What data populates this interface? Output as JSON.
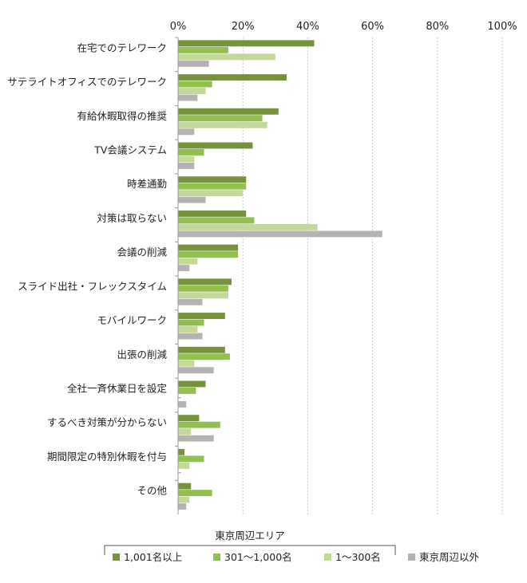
{
  "chart_data": {
    "type": "bar",
    "orientation": "horizontal",
    "xlim": [
      0,
      100
    ],
    "x_ticks": [
      "0%",
      "20%",
      "40%",
      "60%",
      "80%",
      "100%"
    ],
    "categories": [
      "在宅でのテレワーク",
      "サテライトオフィスでのテレワーク",
      "有給休暇取得の推奨",
      "TV会議システム",
      "時差通勤",
      "対策は取らない",
      "会議の削減",
      "スライド出社・フレックスタイム",
      "モバイルワーク",
      "出張の削減",
      "全社一斉休業日を設定",
      "するべき対策が分からない",
      "期間限定の特別休暇を付与",
      "その他"
    ],
    "series": [
      {
        "name": "1,001名以上",
        "color": "#76933c",
        "values": [
          42,
          33.5,
          31,
          23,
          21,
          21,
          18.5,
          16.5,
          14.5,
          14.5,
          8.5,
          6.5,
          2,
          4
        ]
      },
      {
        "name": "301～1,000名",
        "color": "#92c050",
        "values": [
          15.5,
          10.5,
          26,
          8,
          21,
          23.5,
          18.5,
          15.5,
          8,
          16,
          5.5,
          13,
          8,
          10.5
        ]
      },
      {
        "name": "1～300名",
        "color": "#c4d89a",
        "values": [
          30,
          8.5,
          27.5,
          5,
          20,
          43,
          6,
          15.5,
          6,
          5,
          0,
          4,
          3.5,
          3.5
        ]
      },
      {
        "name": "東京周辺以外",
        "color": "#b3b3b3",
        "values": [
          9.5,
          6,
          5,
          5,
          8.5,
          63,
          3.5,
          7.5,
          7.5,
          11,
          2.5,
          11,
          0,
          2.5
        ]
      }
    ],
    "legend": {
      "group_label": "東京周辺エリア",
      "position": "bottom"
    },
    "grid": true
  }
}
